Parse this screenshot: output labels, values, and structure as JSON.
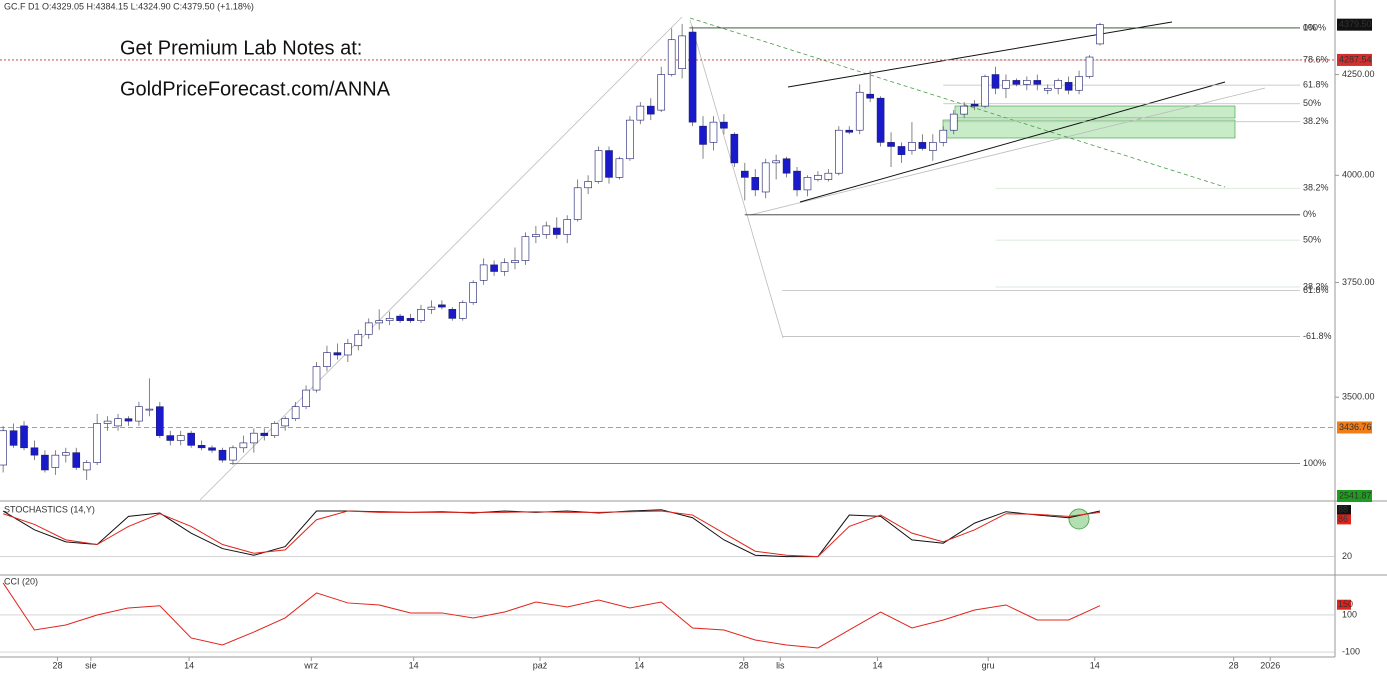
{
  "chart_data": [
    {
      "type": "candlestick",
      "title": "GC.F  D1  O:4329.05  H:4384.15  L:4324.90  C:4379.50  (+1.18%)",
      "annotations": [
        "Get Premium Lab Notes at:",
        "GoldPriceForecast.com/ANNA"
      ],
      "log_scale": true,
      "ylim": [
        3290,
        4445
      ],
      "xlim": [
        -0.3,
        127.5
      ],
      "yticks": [
        {
          "value": 4250,
          "label": "4250.00"
        },
        {
          "value": 4000,
          "label": "4000.00"
        },
        {
          "value": 3750,
          "label": "3750.00"
        },
        {
          "value": 3500,
          "label": "3500.00"
        }
      ],
      "xticks": [
        {
          "value": 5.2,
          "label": "28"
        },
        {
          "value": 8.4,
          "label": "sie"
        },
        {
          "value": 17.8,
          "label": "14"
        },
        {
          "value": 29.5,
          "label": "wrz"
        },
        {
          "value": 39.3,
          "label": "14"
        },
        {
          "value": 51.4,
          "label": "paź"
        },
        {
          "value": 60.9,
          "label": "14"
        },
        {
          "value": 70.9,
          "label": "28"
        },
        {
          "value": 74.4,
          "label": "lis"
        },
        {
          "value": 83.7,
          "label": "14"
        },
        {
          "value": 94.3,
          "label": "gru"
        },
        {
          "value": 104.5,
          "label": "14"
        },
        {
          "value": 117.8,
          "label": "28"
        },
        {
          "value": 121.3,
          "label": "2026"
        }
      ],
      "up_color": "#ffffff",
      "down_color": "#1a1acd",
      "edge_color": "#1a1a6e",
      "open": [
        3360,
        3430,
        3440,
        3395,
        3380,
        3355,
        3380,
        3385,
        3350,
        3365,
        3445,
        3440,
        3455,
        3450,
        3475,
        3480,
        3420,
        3410,
        3425,
        3400,
        3395,
        3390,
        3370,
        3395,
        3405,
        3425,
        3420,
        3440,
        3455,
        3480,
        3515,
        3565,
        3595,
        3590,
        3610,
        3635,
        3660,
        3665,
        3675,
        3670,
        3665,
        3690,
        3700,
        3690,
        3670,
        3705,
        3755,
        3790,
        3775,
        3795,
        3800,
        3855,
        3860,
        3875,
        3860,
        3895,
        3970,
        3985,
        4060,
        3995,
        4040,
        4135,
        4170,
        4160,
        4250,
        4265,
        4360,
        4120,
        4080,
        4130,
        4100,
        4010,
        3995,
        3960,
        4030,
        4040,
        4010,
        3965,
        3990,
        3990,
        4005,
        4110,
        4110,
        4200,
        4190,
        4080,
        4070,
        4060,
        4080,
        4060,
        4080,
        4110,
        4150,
        4175,
        4170,
        4250,
        4215,
        4235,
        4225,
        4235,
        4210,
        4215,
        4230,
        4210,
        4245,
        4329.05
      ],
      "high": [
        3440,
        3445,
        3450,
        3410,
        3390,
        3390,
        3395,
        3395,
        3370,
        3465,
        3460,
        3465,
        3460,
        3490,
        3540,
        3490,
        3430,
        3430,
        3430,
        3410,
        3400,
        3395,
        3400,
        3420,
        3435,
        3435,
        3450,
        3460,
        3490,
        3525,
        3575,
        3610,
        3615,
        3625,
        3645,
        3670,
        3690,
        3685,
        3680,
        3680,
        3700,
        3710,
        3710,
        3695,
        3710,
        3755,
        3805,
        3800,
        3805,
        3830,
        3865,
        3880,
        3890,
        3900,
        3905,
        3990,
        4000,
        4070,
        4070,
        4045,
        4145,
        4180,
        4190,
        4270,
        4370,
        4381,
        4375,
        4145,
        4145,
        4150,
        4105,
        4030,
        4015,
        4040,
        4050,
        4045,
        4020,
        4000,
        4010,
        4015,
        4120,
        4120,
        4225,
        4260,
        4195,
        4105,
        4080,
        4130,
        4100,
        4100,
        4120,
        4160,
        4180,
        4185,
        4250,
        4270,
        4250,
        4240,
        4245,
        4250,
        4225,
        4240,
        4245,
        4260,
        4300,
        4384.15
      ],
      "low": [
        3345,
        3395,
        3390,
        3370,
        3345,
        3340,
        3365,
        3350,
        3330,
        3360,
        3430,
        3430,
        3440,
        3440,
        3460,
        3415,
        3400,
        3400,
        3395,
        3390,
        3385,
        3365,
        3360,
        3385,
        3385,
        3410,
        3415,
        3430,
        3450,
        3475,
        3510,
        3555,
        3580,
        3575,
        3600,
        3625,
        3645,
        3655,
        3660,
        3660,
        3660,
        3680,
        3690,
        3665,
        3665,
        3700,
        3745,
        3765,
        3765,
        3780,
        3790,
        3840,
        3850,
        3850,
        3840,
        3890,
        3955,
        3980,
        3980,
        3990,
        4035,
        4125,
        4135,
        4155,
        4245,
        4240,
        4120,
        4040,
        4060,
        4100,
        4020,
        3940,
        3950,
        3945,
        3990,
        3995,
        3950,
        3950,
        3985,
        3985,
        4000,
        4100,
        4100,
        4180,
        4070,
        4020,
        4030,
        4050,
        4060,
        4035,
        4070,
        4100,
        4140,
        4160,
        4165,
        4200,
        4190,
        4220,
        4210,
        4210,
        4200,
        4200,
        4200,
        4200,
        4240,
        4324.9
      ],
      "close": [
        3430,
        3400,
        3395,
        3380,
        3350,
        3380,
        3385,
        3355,
        3365,
        3445,
        3450,
        3455,
        3450,
        3480,
        3475,
        3420,
        3410,
        3420,
        3400,
        3395,
        3390,
        3370,
        3395,
        3405,
        3425,
        3420,
        3445,
        3455,
        3480,
        3515,
        3565,
        3595,
        3590,
        3615,
        3635,
        3660,
        3665,
        3670,
        3665,
        3665,
        3690,
        3695,
        3695,
        3670,
        3705,
        3750,
        3790,
        3775,
        3795,
        3800,
        3855,
        3860,
        3880,
        3860,
        3895,
        3970,
        3985,
        4060,
        3995,
        4040,
        4135,
        4170,
        4150,
        4250,
        4340,
        4350,
        4130,
        4075,
        4130,
        4115,
        4030,
        3995,
        3965,
        4030,
        4035,
        4005,
        3965,
        3995,
        4000,
        4005,
        4110,
        4105,
        4205,
        4190,
        4080,
        4070,
        4050,
        4080,
        4065,
        4080,
        4110,
        4150,
        4170,
        4170,
        4245,
        4215,
        4235,
        4225,
        4235,
        4225,
        4215,
        4235,
        4210,
        4245,
        4295,
        4379.5
      ],
      "levels": [
        {
          "value": 4371,
          "label": "100%",
          "color": "#2e7d32",
          "from": 65.7
        },
        {
          "value": 4371,
          "label": "0%",
          "color": "#333333",
          "from": 65.7
        },
        {
          "value": 4287,
          "label": "78.6%",
          "color": "#bbbbbb",
          "from": 90
        },
        {
          "value": 4223,
          "label": "61.8%",
          "color": "#bbbbbb",
          "from": 90
        },
        {
          "value": 4176,
          "label": "50%",
          "color": "#bbbbbb",
          "from": 90
        },
        {
          "value": 4131,
          "label": "38.2%",
          "color": "#bbbbbb",
          "from": 90
        },
        {
          "value": 3969,
          "label": "38.2%",
          "color": "#cfe3cf",
          "from": 95
        },
        {
          "value": 3906,
          "label": "0%",
          "color": "#333333",
          "from": 71
        },
        {
          "value": 3847,
          "label": "50%",
          "color": "#cfe3cf",
          "from": 95
        },
        {
          "value": 3740,
          "label": "38.2%",
          "color": "#cfe3cf",
          "from": 95
        },
        {
          "value": 3732,
          "label": "61.8%",
          "color": "#bbbbbb",
          "from": 74.6
        },
        {
          "value": 3630,
          "label": "-61.8%",
          "color": "#bbbbbb",
          "from": 74.6
        },
        {
          "value": 3363,
          "label": "100%",
          "color": "#2e7d32",
          "from": 21.7
        }
      ],
      "price_labels": [
        {
          "value": 4379.5,
          "label": "4379.50",
          "color": "#111111",
          "line": "none"
        },
        {
          "value": 4287.54,
          "label": "4287.54",
          "color": "#d32f2f",
          "line": "dotted"
        },
        {
          "value": 3436.76,
          "label": "3436.76",
          "color": "#ef7d1a",
          "line": "dashed"
        },
        {
          "value": 2541.87,
          "label": "2541.87",
          "color": "#1e9e1e",
          "line": "none"
        }
      ]
    },
    {
      "type": "line",
      "title": "STOCHASTICS (14,Y)",
      "xlim": [
        -0.3,
        127.5
      ],
      "ylim": [
        0,
        100
      ],
      "yticks": [
        20
      ],
      "x": [
        0,
        3,
        6,
        9,
        12,
        15,
        18,
        21,
        24,
        27,
        30,
        33,
        36,
        39,
        42,
        45,
        48,
        51,
        54,
        57,
        60,
        63,
        66,
        69,
        72,
        75,
        78,
        81,
        84,
        87,
        90,
        93,
        96,
        99,
        102,
        105
      ],
      "series": [
        {
          "color": "#111111",
          "last_label": "88",
          "values": [
            88,
            60,
            42,
            38,
            80,
            85,
            55,
            32,
            22,
            35,
            88,
            88,
            87,
            86,
            87,
            85,
            88,
            86,
            88,
            85,
            88,
            90,
            78,
            45,
            22,
            20,
            20,
            82,
            80,
            45,
            40,
            70,
            87,
            82,
            78,
            88
          ]
        },
        {
          "color": "#e0241b",
          "last_label": "86",
          "values": [
            84,
            68,
            45,
            38,
            65,
            84,
            65,
            38,
            25,
            30,
            75,
            88,
            86,
            86,
            86,
            86,
            86,
            87,
            86,
            86,
            87,
            88,
            82,
            55,
            28,
            22,
            20,
            65,
            82,
            55,
            42,
            60,
            84,
            83,
            80,
            86
          ]
        }
      ]
    },
    {
      "type": "line",
      "title": "CCI (20)",
      "xlim": [
        -0.3,
        127.5
      ],
      "ylim": [
        -116,
        305
      ],
      "yticks": [
        100,
        -100
      ],
      "x": [
        0,
        3,
        6,
        9,
        12,
        15,
        18,
        21,
        24,
        27,
        30,
        33,
        36,
        39,
        42,
        45,
        48,
        51,
        54,
        57,
        60,
        63,
        66,
        69,
        72,
        75,
        78,
        81,
        84,
        87,
        90,
        93,
        96,
        99,
        102,
        105
      ],
      "series": [
        {
          "color": "#e0241b",
          "last_label": "150",
          "values": [
            273,
            19,
            46,
            100,
            138,
            150,
            -24,
            -62,
            8,
            84,
            219,
            165,
            154,
            111,
            111,
            84,
            116,
            170,
            143,
            181,
            138,
            170,
            30,
            19,
            -35,
            -62,
            -78,
            19,
            116,
            30,
            73,
            127,
            154,
            73,
            73,
            150
          ]
        }
      ]
    }
  ]
}
